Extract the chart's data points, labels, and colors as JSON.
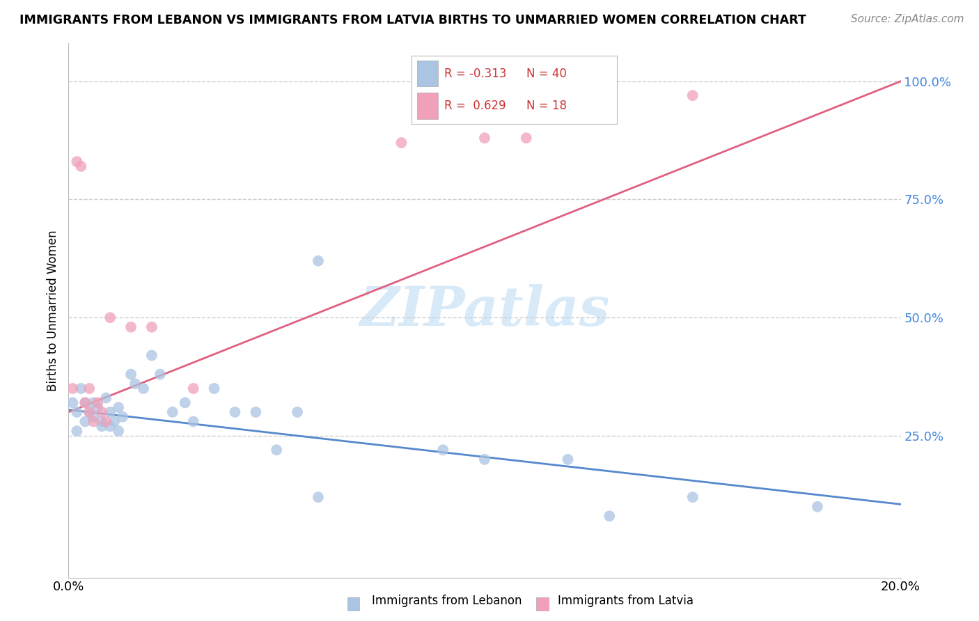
{
  "title": "IMMIGRANTS FROM LEBANON VS IMMIGRANTS FROM LATVIA BIRTHS TO UNMARRIED WOMEN CORRELATION CHART",
  "source": "Source: ZipAtlas.com",
  "ylabel": "Births to Unmarried Women",
  "xlim": [
    0.0,
    0.2
  ],
  "ylim": [
    -0.05,
    1.08
  ],
  "ytick_vals": [
    0.25,
    0.5,
    0.75,
    1.0
  ],
  "ytick_labels": [
    "25.0%",
    "50.0%",
    "75.0%",
    "100.0%"
  ],
  "color_lebanon": "#aac4e2",
  "color_latvia": "#f0a0b8",
  "color_line_lebanon": "#5588cc",
  "color_line_latvia": "#e06080",
  "legend_line1_r": "R = -0.313",
  "legend_line1_n": "N = 40",
  "legend_line2_r": "R =  0.629",
  "legend_line2_n": "N = 18",
  "label_lebanon": "Immigrants from Lebanon",
  "label_latvia": "Immigrants from Latvia",
  "leb_line_x": [
    0.0,
    0.2
  ],
  "leb_line_y": [
    0.305,
    0.105
  ],
  "lat_line_x": [
    0.0,
    0.2
  ],
  "lat_line_y": [
    0.3,
    1.0
  ],
  "leb_x": [
    0.001,
    0.002,
    0.003,
    0.004,
    0.005,
    0.006,
    0.007,
    0.008,
    0.009,
    0.01,
    0.011,
    0.012,
    0.013,
    0.015,
    0.016,
    0.018,
    0.02,
    0.022,
    0.025,
    0.028,
    0.03,
    0.035,
    0.04,
    0.045,
    0.05,
    0.055,
    0.06,
    0.002,
    0.004,
    0.006,
    0.008,
    0.01,
    0.012,
    0.06,
    0.09,
    0.1,
    0.12,
    0.13,
    0.15,
    0.18
  ],
  "leb_y": [
    0.32,
    0.3,
    0.35,
    0.28,
    0.3,
    0.32,
    0.31,
    0.28,
    0.33,
    0.3,
    0.28,
    0.31,
    0.29,
    0.38,
    0.36,
    0.35,
    0.42,
    0.38,
    0.3,
    0.32,
    0.28,
    0.35,
    0.3,
    0.3,
    0.22,
    0.3,
    0.62,
    0.26,
    0.32,
    0.29,
    0.27,
    0.27,
    0.26,
    0.12,
    0.22,
    0.2,
    0.2,
    0.08,
    0.12,
    0.1
  ],
  "lat_x": [
    0.001,
    0.002,
    0.003,
    0.004,
    0.005,
    0.005,
    0.006,
    0.007,
    0.008,
    0.009,
    0.01,
    0.015,
    0.02,
    0.03,
    0.08,
    0.1,
    0.11,
    0.15
  ],
  "lat_y": [
    0.35,
    0.83,
    0.82,
    0.32,
    0.35,
    0.3,
    0.28,
    0.32,
    0.3,
    0.28,
    0.5,
    0.48,
    0.48,
    0.35,
    0.87,
    0.88,
    0.88,
    0.97
  ]
}
